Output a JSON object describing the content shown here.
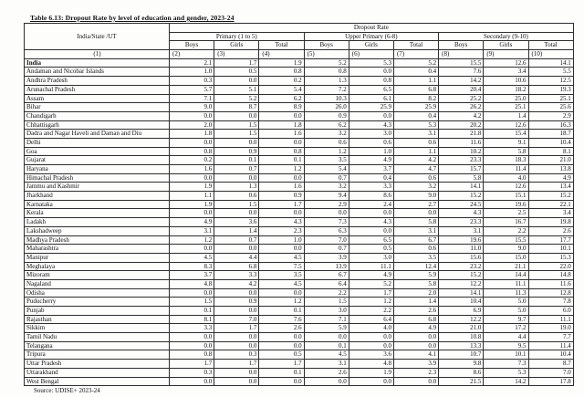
{
  "title": "Table 6.13: Dropout Rate by level of education and gender, 2023-24",
  "source": "Source: UDISE+ 2023-24",
  "table": {
    "name_header": "India/State /UT",
    "group_header": "Dropout Rate",
    "levels": [
      "Primary (1 to 5)",
      "Upper Primary (6-8)",
      "Secondary (9-10)"
    ],
    "sub_headers": [
      "Boys",
      "Girls",
      "Total"
    ],
    "col_numbers": [
      "(1)",
      "(2)",
      "(3)",
      "(4)",
      "(5)",
      "(6)",
      "(7)",
      "(8)",
      "(9)",
      "(10)"
    ],
    "rows": [
      {
        "name": "India",
        "bold": true,
        "values": [
          "2.1",
          "1.7",
          "1.9",
          "5.2",
          "5.3",
          "5.2",
          "15.5",
          "12.6",
          "14.1"
        ]
      },
      {
        "name": "Andaman and Nicobar Islands",
        "bold": false,
        "values": [
          "1.0",
          "0.5",
          "0.8",
          "0.8",
          "0.0",
          "0.4",
          "7.6",
          "3.4",
          "5.5"
        ]
      },
      {
        "name": "Andhra Pradesh",
        "bold": false,
        "values": [
          "0.3",
          "0.0",
          "0.2",
          "1.3",
          "0.8",
          "1.1",
          "14.2",
          "10.6",
          "12.5"
        ]
      },
      {
        "name": "Arunachal Pradesh",
        "bold": false,
        "values": [
          "5.7",
          "5.1",
          "5.4",
          "7.2",
          "6.5",
          "6.8",
          "20.4",
          "18.2",
          "19.3"
        ]
      },
      {
        "name": "Assam",
        "bold": false,
        "values": [
          "7.1",
          "5.2",
          "6.2",
          "10.3",
          "6.1",
          "8.2",
          "25.2",
          "25.0",
          "25.1"
        ]
      },
      {
        "name": "Bihar",
        "bold": false,
        "values": [
          "9.0",
          "8.7",
          "8.9",
          "26.0",
          "25.9",
          "25.9",
          "26.2",
          "25.1",
          "25.6"
        ]
      },
      {
        "name": "Chandigarh",
        "bold": false,
        "values": [
          "0.0",
          "0.0",
          "0.0",
          "0.9",
          "0.0",
          "0.4",
          "4.2",
          "1.4",
          "2.9"
        ]
      },
      {
        "name": "Chhattisgarh",
        "bold": false,
        "values": [
          "2.0",
          "1.5",
          "1.8",
          "6.2",
          "4.3",
          "5.3",
          "20.2",
          "12.6",
          "16.3"
        ]
      },
      {
        "name": "Dadra and Nagar Haveli and Daman and Diu",
        "bold": false,
        "values": [
          "1.8",
          "1.5",
          "1.6",
          "3.2",
          "3.0",
          "3.1",
          "21.8",
          "15.4",
          "18.7"
        ]
      },
      {
        "name": "Delhi",
        "bold": false,
        "values": [
          "0.0",
          "0.0",
          "0.0",
          "0.6",
          "0.6",
          "0.6",
          "11.6",
          "9.1",
          "10.4"
        ]
      },
      {
        "name": "Goa",
        "bold": false,
        "values": [
          "0.8",
          "0.9",
          "0.8",
          "1.2",
          "1.0",
          "1.1",
          "10.2",
          "5.8",
          "8.1"
        ]
      },
      {
        "name": "Gujarat",
        "bold": false,
        "values": [
          "0.2",
          "0.1",
          "0.1",
          "3.5",
          "4.9",
          "4.2",
          "23.3",
          "18.3",
          "21.0"
        ]
      },
      {
        "name": "Haryana",
        "bold": false,
        "values": [
          "1.6",
          "0.7",
          "1.2",
          "5.4",
          "3.7",
          "4.7",
          "15.7",
          "11.4",
          "13.8"
        ]
      },
      {
        "name": "Himachal Pradesh",
        "bold": false,
        "values": [
          "0.0",
          "0.0",
          "0.0",
          "0.7",
          "0.4",
          "0.6",
          "5.8",
          "4.0",
          "4.9"
        ]
      },
      {
        "name": "Jammu and Kashmir",
        "bold": false,
        "values": [
          "1.9",
          "1.3",
          "1.6",
          "3.2",
          "3.3",
          "3.2",
          "14.1",
          "12.6",
          "13.4"
        ]
      },
      {
        "name": "Jharkhand",
        "bold": false,
        "values": [
          "1.1",
          "0.6",
          "0.9",
          "9.4",
          "8.6",
          "9.0",
          "15.2",
          "15.1",
          "15.2"
        ]
      },
      {
        "name": "Karnataka",
        "bold": false,
        "values": [
          "1.9",
          "1.5",
          "1.7",
          "2.9",
          "2.4",
          "2.7",
          "24.5",
          "19.6",
          "22.1"
        ]
      },
      {
        "name": "Kerala",
        "bold": false,
        "values": [
          "0.0",
          "0.0",
          "0.0",
          "0.0",
          "0.0",
          "0.0",
          "4.3",
          "2.5",
          "3.4"
        ]
      },
      {
        "name": "Ladakh",
        "bold": false,
        "values": [
          "4.9",
          "3.6",
          "4.3",
          "7.3",
          "4.3",
          "5.8",
          "23.3",
          "16.7",
          "19.8"
        ]
      },
      {
        "name": "Lakshadweep",
        "bold": false,
        "values": [
          "3.1",
          "1.4",
          "2.3",
          "6.3",
          "0.0",
          "3.1",
          "3.1",
          "2.2",
          "2.6"
        ]
      },
      {
        "name": "Madhya Pradesh",
        "bold": false,
        "values": [
          "1.2",
          "0.7",
          "1.0",
          "7.0",
          "6.5",
          "6.7",
          "19.6",
          "15.5",
          "17.7"
        ]
      },
      {
        "name": "Maharashtra",
        "bold": false,
        "values": [
          "0.0",
          "0.0",
          "0.0",
          "0.7",
          "0.5",
          "0.6",
          "11.0",
          "9.0",
          "10.1"
        ]
      },
      {
        "name": "Manipur",
        "bold": false,
        "values": [
          "4.5",
          "4.4",
          "4.5",
          "3.9",
          "3.0",
          "3.5",
          "15.6",
          "15.0",
          "15.3"
        ]
      },
      {
        "name": "Meghalaya",
        "bold": false,
        "values": [
          "8.3",
          "6.8",
          "7.5",
          "13.9",
          "11.1",
          "12.4",
          "23.2",
          "21.1",
          "22.0"
        ]
      },
      {
        "name": "Mizoram",
        "bold": false,
        "values": [
          "3.7",
          "3.3",
          "3.5",
          "6.7",
          "4.9",
          "5.9",
          "15.2",
          "14.4",
          "14.8"
        ]
      },
      {
        "name": "Nagaland",
        "bold": false,
        "values": [
          "4.8",
          "4.2",
          "4.5",
          "6.4",
          "5.2",
          "5.8",
          "12.2",
          "11.1",
          "11.6"
        ]
      },
      {
        "name": "Odisha",
        "bold": false,
        "values": [
          "0.0",
          "0.0",
          "0.0",
          "2.2",
          "1.7",
          "2.0",
          "14.1",
          "11.3",
          "12.8"
        ]
      },
      {
        "name": "Puducherry",
        "bold": false,
        "values": [
          "1.5",
          "0.9",
          "1.2",
          "1.5",
          "1.2",
          "1.4",
          "10.4",
          "5.0",
          "7.8"
        ]
      },
      {
        "name": "Punjab",
        "bold": false,
        "values": [
          "0.1",
          "0.0",
          "0.1",
          "3.0",
          "2.2",
          "2.6",
          "6.9",
          "5.0",
          "6.0"
        ]
      },
      {
        "name": "Rajasthan",
        "bold": false,
        "values": [
          "8.1",
          "7.0",
          "7.6",
          "7.1",
          "6.4",
          "6.8",
          "12.2",
          "9.7",
          "11.1"
        ]
      },
      {
        "name": "Sikkim",
        "bold": false,
        "values": [
          "3.3",
          "1.7",
          "2.6",
          "5.9",
          "4.0",
          "4.9",
          "21.0",
          "17.2",
          "19.0"
        ]
      },
      {
        "name": "Tamil Nadu",
        "bold": false,
        "values": [
          "0.0",
          "0.0",
          "0.0",
          "0.0",
          "0.0",
          "0.0",
          "10.8",
          "4.4",
          "7.7"
        ]
      },
      {
        "name": "Telangana",
        "bold": false,
        "values": [
          "0.0",
          "0.0",
          "0.0",
          "0.1",
          "0.0",
          "0.0",
          "13.3",
          "9.5",
          "11.4"
        ]
      },
      {
        "name": "Tripura",
        "bold": false,
        "values": [
          "0.8",
          "0.3",
          "0.5",
          "4.5",
          "3.6",
          "4.1",
          "10.7",
          "10.1",
          "10.4"
        ]
      },
      {
        "name": "Uttar Pradesh",
        "bold": false,
        "values": [
          "1.7",
          "1.7",
          "1.7",
          "3.1",
          "4.8",
          "3.9",
          "9.8",
          "7.3",
          "8.7"
        ]
      },
      {
        "name": "Uttarakhand",
        "bold": false,
        "values": [
          "0.3",
          "0.0",
          "0.1",
          "2.6",
          "1.9",
          "2.3",
          "8.6",
          "5.3",
          "7.0"
        ]
      },
      {
        "name": "West Bengal",
        "bold": false,
        "values": [
          "0.0",
          "0.0",
          "0.0",
          "0.0",
          "0.0",
          "0.0",
          "21.5",
          "14.2",
          "17.8"
        ]
      }
    ]
  }
}
